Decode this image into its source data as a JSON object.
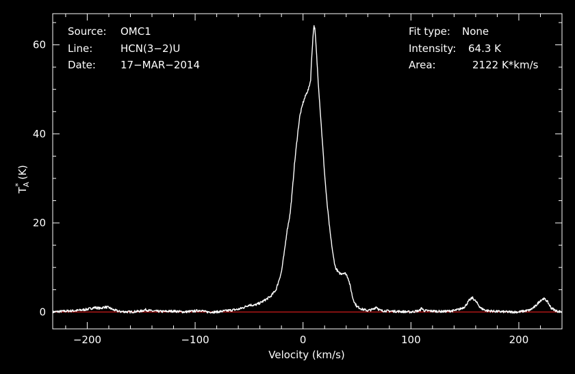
{
  "chart_data": {
    "type": "line",
    "xlabel": "Velocity (km/s)",
    "ylabel_main": "T",
    "ylabel_sup": "*",
    "ylabel_sub": "A",
    "ylabel_unit": " (K)",
    "xlim": [
      -232,
      240
    ],
    "ylim": [
      -3.8,
      67
    ],
    "xticks": [
      -200,
      -100,
      0,
      100,
      200
    ],
    "xtick_labels": [
      "−200",
      "−100",
      "0",
      "100",
      "200"
    ],
    "yticks": [
      0,
      20,
      40,
      60
    ],
    "ytick_labels": [
      "0",
      "20",
      "40",
      "60"
    ],
    "baseline": 0,
    "info_left": [
      {
        "key": "Source:",
        "value": "OMC1"
      },
      {
        "key": "Line:",
        "value": "HCN(3−2)U"
      },
      {
        "key": "Date:",
        "value": "17−MAR−2014"
      }
    ],
    "info_right": [
      {
        "key": "Fit type:",
        "value": "None"
      },
      {
        "key": "Intensity:",
        "value": "64.3 K"
      },
      {
        "key": "Area:",
        "value": "2122 K*km/s"
      }
    ],
    "series": [
      {
        "x": [
          -232,
          -220,
          -210,
          -200,
          -193,
          -188,
          -184,
          -180,
          -176,
          -170,
          -160,
          -150,
          -146,
          -140,
          -130,
          -120,
          -110,
          -100,
          -95,
          -90,
          -80,
          -70,
          -60,
          -55,
          -50,
          -45,
          -40,
          -35,
          -30,
          -25,
          -20,
          -17,
          -15,
          -12,
          -10,
          -8,
          -5,
          -3,
          0,
          3,
          5,
          7,
          8,
          9,
          10,
          11,
          12,
          13,
          14,
          16,
          18,
          20,
          22,
          25,
          28,
          30,
          33,
          35,
          38,
          40,
          42,
          44,
          46,
          48,
          50,
          55,
          60,
          65,
          68,
          70,
          72,
          80,
          90,
          100,
          108,
          110,
          112,
          120,
          130,
          140,
          145,
          150,
          154,
          157,
          160,
          165,
          170,
          180,
          190,
          200,
          210,
          215,
          220,
          223,
          226,
          230,
          235,
          240
        ],
        "y": [
          0,
          0.2,
          0.3,
          0.6,
          1.0,
          0.8,
          1.1,
          1.0,
          0.5,
          0.1,
          0,
          0.2,
          0.5,
          0.2,
          0.1,
          0.2,
          0,
          0.2,
          0.4,
          0,
          0,
          0.3,
          0.6,
          1.0,
          1.6,
          1.5,
          2.0,
          2.7,
          3.5,
          5.0,
          9.0,
          14.0,
          18.0,
          22.0,
          27.0,
          33.0,
          40.0,
          44.0,
          47.0,
          49.0,
          50.0,
          52.0,
          57.0,
          61.0,
          64.3,
          63.5,
          60.0,
          56.0,
          52.0,
          45.0,
          38.0,
          31.0,
          25.0,
          18.0,
          12.5,
          10.0,
          8.8,
          8.6,
          8.8,
          8.5,
          7.5,
          5.5,
          3.2,
          2.0,
          1.2,
          0.6,
          0.3,
          0.6,
          1.2,
          0.6,
          0.3,
          0.2,
          0.1,
          0,
          0.3,
          0.9,
          0.3,
          0.2,
          0.1,
          0.3,
          0.6,
          1.2,
          2.6,
          3.2,
          2.4,
          0.8,
          0.3,
          0.1,
          0,
          0,
          0.4,
          1.2,
          2.6,
          3.0,
          2.5,
          0.9,
          0.2,
          0
        ]
      }
    ],
    "colors": {
      "background": "#000000",
      "axes": "#ffffff",
      "spectrum": "#ffffff",
      "baseline": "#ff2020"
    }
  }
}
